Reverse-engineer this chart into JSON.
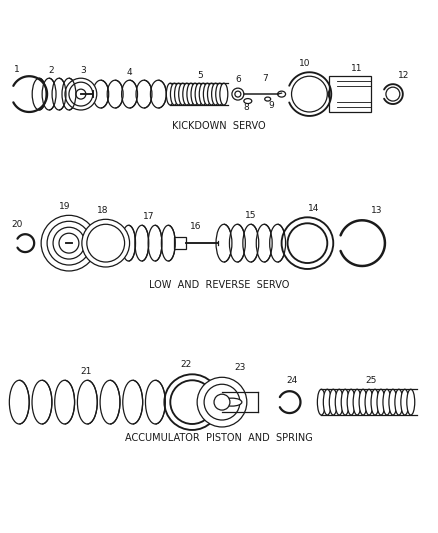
{
  "bg_color": "#ffffff",
  "line_color": "#1a1a1a",
  "section1_label": "KICKDOWN  SERVO",
  "section2_label": "LOW  AND  REVERSE  SERVO",
  "section3_label": "ACCUMULATOR  PISTON  AND  SPRING",
  "lw": 0.9,
  "num_fs": 6.5,
  "lbl_fs": 7.0
}
